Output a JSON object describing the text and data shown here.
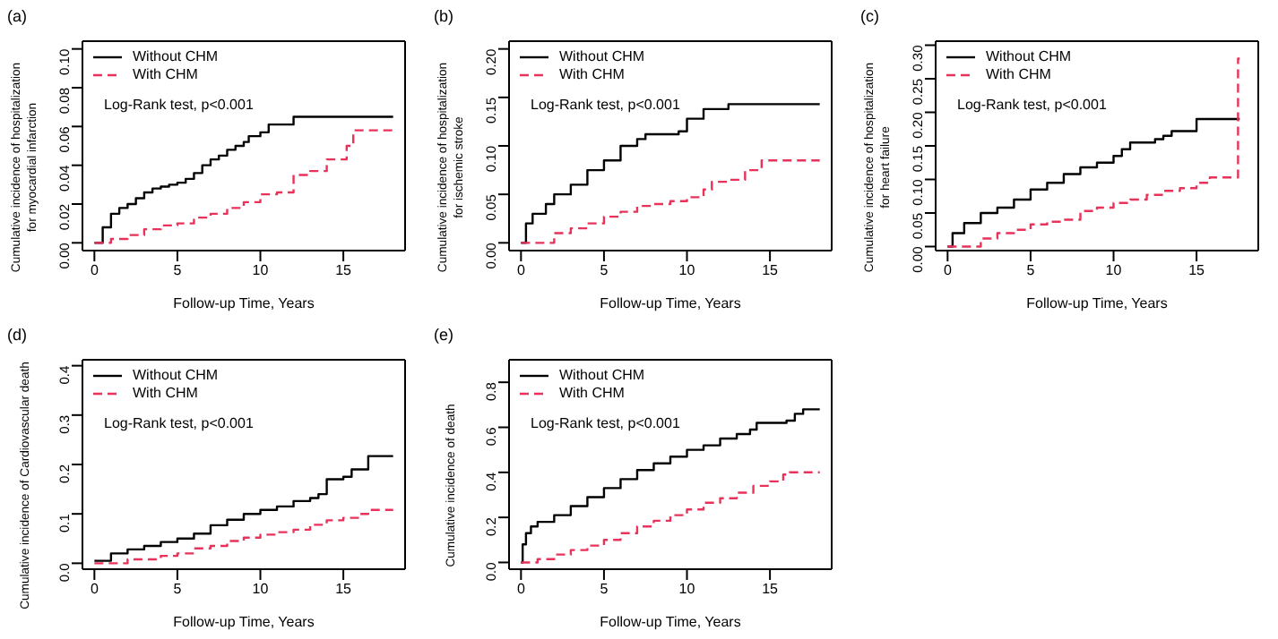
{
  "chart_data": [
    {
      "type": "step",
      "title": "(a)",
      "xlabel": "Follow-up Time, Years",
      "ylabel": "Cumulative incidence of hospitalization\nfor myocardial infarction",
      "annotations": [
        "Log-Rank test, p<0.001"
      ],
      "xlim": [
        -0.72,
        18.72
      ],
      "xticks": [
        0,
        5,
        10,
        15
      ],
      "ylim": [
        -0.004,
        0.104
      ],
      "yticks": [
        {
          "value": 0,
          "label": "0.00"
        },
        {
          "value": 0.02,
          "label": "0.02"
        },
        {
          "value": 0.04,
          "label": "0.04"
        },
        {
          "value": 0.06,
          "label": "0.06"
        },
        {
          "value": 0.08,
          "label": "0.08"
        },
        {
          "value": 0.1,
          "label": "0.10"
        }
      ],
      "legend": "top left",
      "series": [
        {
          "name": "Without CHM",
          "color": "#000000",
          "line_style": "solid",
          "x": [
            0,
            0.5,
            1,
            1.5,
            2,
            2.5,
            3,
            3.5,
            4,
            4.5,
            5,
            5.5,
            6,
            6.5,
            7,
            7.5,
            8,
            8.5,
            9,
            9.3,
            10,
            10.5,
            12,
            18
          ],
          "values": [
            0,
            0.008,
            0.015,
            0.018,
            0.02,
            0.023,
            0.026,
            0.028,
            0.029,
            0.03,
            0.031,
            0.033,
            0.036,
            0.04,
            0.043,
            0.045,
            0.048,
            0.05,
            0.052,
            0.055,
            0.057,
            0.061,
            0.065,
            0.065
          ]
        },
        {
          "name": "With CHM",
          "color": "#e8325a",
          "line_style": "dashed",
          "x": [
            0,
            1,
            2,
            3,
            4,
            5,
            6,
            7,
            8,
            9,
            10,
            11,
            12,
            13,
            14,
            15.2,
            15.6,
            18
          ],
          "values": [
            0,
            0.002,
            0.004,
            0.007,
            0.009,
            0.01,
            0.013,
            0.015,
            0.018,
            0.021,
            0.025,
            0.026,
            0.035,
            0.037,
            0.043,
            0.05,
            0.058,
            0.058
          ]
        }
      ]
    },
    {
      "type": "step",
      "title": "(b)",
      "xlabel": "Follow-up Time, Years",
      "ylabel": "Cumulative incidence of hospitalization\nfor ischemic stroke",
      "annotations": [
        "Log-Rank test, p<0.001"
      ],
      "xlim": [
        -0.72,
        18.72
      ],
      "xticks": [
        0,
        5,
        10,
        15
      ],
      "ylim": [
        -0.008,
        0.208
      ],
      "yticks": [
        {
          "value": 0,
          "label": "0.00"
        },
        {
          "value": 0.05,
          "label": "0.05"
        },
        {
          "value": 0.1,
          "label": "0.10"
        },
        {
          "value": 0.15,
          "label": "0.15"
        },
        {
          "value": 0.2,
          "label": "0.20"
        }
      ],
      "legend": "top left",
      "series": [
        {
          "name": "Without CHM",
          "color": "#000000",
          "line_style": "solid",
          "x": [
            0,
            0.3,
            0.7,
            1.5,
            2,
            3,
            4,
            5,
            6,
            7,
            7.5,
            9.5,
            10,
            11,
            12.5,
            18
          ],
          "values": [
            0,
            0.02,
            0.03,
            0.04,
            0.05,
            0.06,
            0.075,
            0.085,
            0.1,
            0.107,
            0.112,
            0.115,
            0.128,
            0.138,
            0.143,
            0.143
          ]
        },
        {
          "name": "With CHM",
          "color": "#e8325a",
          "line_style": "dashed",
          "x": [
            0,
            2,
            3,
            4,
            5,
            6,
            7,
            8,
            9,
            10,
            11,
            11.5,
            12.5,
            13.5,
            14.5,
            18
          ],
          "values": [
            0,
            0.01,
            0.015,
            0.02,
            0.027,
            0.032,
            0.038,
            0.04,
            0.043,
            0.047,
            0.055,
            0.063,
            0.065,
            0.075,
            0.085,
            0.085
          ]
        }
      ]
    },
    {
      "type": "step",
      "title": "(c)",
      "xlabel": "Follow-up Time, Years",
      "ylabel": "Cumulative incidence of hospitalization\nfor heart failure",
      "annotations": [
        "Log-Rank test, p<0.001"
      ],
      "xlim": [
        -0.72,
        18.72
      ],
      "xticks": [
        0,
        5,
        10,
        15
      ],
      "ylim": [
        -0.006,
        0.306
      ],
      "yticks": [
        {
          "value": 0,
          "label": "0.00"
        },
        {
          "value": 0.05,
          "label": "0.05"
        },
        {
          "value": 0.1,
          "label": "0.10"
        },
        {
          "value": 0.15,
          "label": "0.15"
        },
        {
          "value": 0.2,
          "label": "0.20"
        },
        {
          "value": 0.25,
          "label": "0.25"
        },
        {
          "value": 0.3,
          "label": "0.30"
        }
      ],
      "legend": "top left",
      "series": [
        {
          "name": "Without CHM",
          "color": "#000000",
          "line_style": "solid",
          "x": [
            0,
            0.3,
            1,
            2,
            3,
            4,
            5,
            6,
            7,
            8,
            9,
            10,
            10.5,
            11,
            12.5,
            13,
            13.5,
            15,
            17.6
          ],
          "values": [
            0,
            0.02,
            0.035,
            0.05,
            0.058,
            0.07,
            0.085,
            0.095,
            0.108,
            0.118,
            0.125,
            0.135,
            0.145,
            0.155,
            0.16,
            0.165,
            0.172,
            0.19,
            0.19
          ]
        },
        {
          "name": "With CHM",
          "color": "#e8325a",
          "line_style": "dashed",
          "x": [
            0,
            2,
            3,
            4,
            5,
            6,
            7,
            8,
            9,
            10,
            11,
            12,
            13,
            14,
            15,
            15.8,
            17.5,
            17.6
          ],
          "values": [
            0,
            0.012,
            0.02,
            0.025,
            0.033,
            0.037,
            0.04,
            0.053,
            0.058,
            0.065,
            0.07,
            0.077,
            0.083,
            0.087,
            0.095,
            0.103,
            0.28,
            0.28
          ]
        }
      ]
    },
    {
      "type": "step",
      "title": "(d)",
      "xlabel": "Follow-up Time, Years",
      "ylabel": "Cumulative incidence of Cardiovascular death",
      "annotations": [
        "Log-Rank test, p<0.001"
      ],
      "xlim": [
        -0.72,
        18.72
      ],
      "xticks": [
        0,
        5,
        10,
        15
      ],
      "ylim": [
        -0.012,
        0.412
      ],
      "yticks": [
        {
          "value": 0,
          "label": "0.0"
        },
        {
          "value": 0.1,
          "label": "0.1"
        },
        {
          "value": 0.2,
          "label": "0.2"
        },
        {
          "value": 0.3,
          "label": "0.3"
        },
        {
          "value": 0.4,
          "label": "0.4"
        }
      ],
      "legend": "top left",
      "series": [
        {
          "name": "Without CHM",
          "color": "#000000",
          "line_style": "solid",
          "x": [
            0,
            1,
            2,
            3,
            4,
            5,
            6,
            7,
            8,
            9,
            10,
            11,
            12,
            13,
            13.5,
            14,
            15,
            15.5,
            16.5,
            18
          ],
          "values": [
            0.005,
            0.02,
            0.028,
            0.035,
            0.043,
            0.05,
            0.06,
            0.077,
            0.088,
            0.1,
            0.108,
            0.115,
            0.126,
            0.132,
            0.14,
            0.17,
            0.175,
            0.19,
            0.217,
            0.217
          ]
        },
        {
          "name": "With CHM",
          "color": "#e8325a",
          "line_style": "dashed",
          "x": [
            0,
            2,
            4,
            5,
            6,
            7,
            8,
            9,
            10,
            11,
            12,
            13,
            14,
            15,
            16,
            16.5,
            18
          ],
          "values": [
            0,
            0.008,
            0.015,
            0.02,
            0.03,
            0.035,
            0.045,
            0.052,
            0.058,
            0.063,
            0.068,
            0.078,
            0.087,
            0.092,
            0.1,
            0.108,
            0.108
          ]
        }
      ]
    },
    {
      "type": "step",
      "title": "(e)",
      "xlabel": "Follow-up Time, Years",
      "ylabel": "Cumulative incidence of death",
      "annotations": [
        "Log-Rank test, p<0.001"
      ],
      "xlim": [
        -0.72,
        18.72
      ],
      "xticks": [
        0,
        5,
        10,
        15
      ],
      "ylim": [
        -0.03,
        0.9
      ],
      "yticks": [
        {
          "value": 0,
          "label": "0.0"
        },
        {
          "value": 0.2,
          "label": "0.2"
        },
        {
          "value": 0.4,
          "label": "0.4"
        },
        {
          "value": 0.6,
          "label": "0.6"
        },
        {
          "value": 0.8,
          "label": "0.8"
        }
      ],
      "legend": "top left",
      "series": [
        {
          "name": "Without CHM",
          "color": "#000000",
          "line_style": "solid",
          "x": [
            0,
            0.1,
            0.3,
            0.6,
            1,
            2,
            3,
            4,
            5,
            6,
            7,
            8,
            9,
            10,
            11,
            12,
            13,
            13.8,
            14.2,
            16,
            16.5,
            17,
            18
          ],
          "values": [
            0,
            0.08,
            0.13,
            0.16,
            0.18,
            0.21,
            0.25,
            0.29,
            0.33,
            0.37,
            0.41,
            0.44,
            0.47,
            0.5,
            0.52,
            0.55,
            0.57,
            0.59,
            0.62,
            0.63,
            0.66,
            0.68,
            0.68
          ]
        },
        {
          "name": "With CHM",
          "color": "#e8325a",
          "line_style": "dashed",
          "x": [
            0,
            1,
            2,
            3,
            4,
            5,
            6,
            7,
            8,
            9,
            10,
            11,
            12,
            13,
            14,
            15,
            15.8,
            16.2,
            18
          ],
          "values": [
            0,
            0.015,
            0.035,
            0.055,
            0.075,
            0.1,
            0.13,
            0.16,
            0.185,
            0.21,
            0.235,
            0.265,
            0.285,
            0.31,
            0.34,
            0.36,
            0.39,
            0.4,
            0.4
          ]
        }
      ]
    }
  ]
}
